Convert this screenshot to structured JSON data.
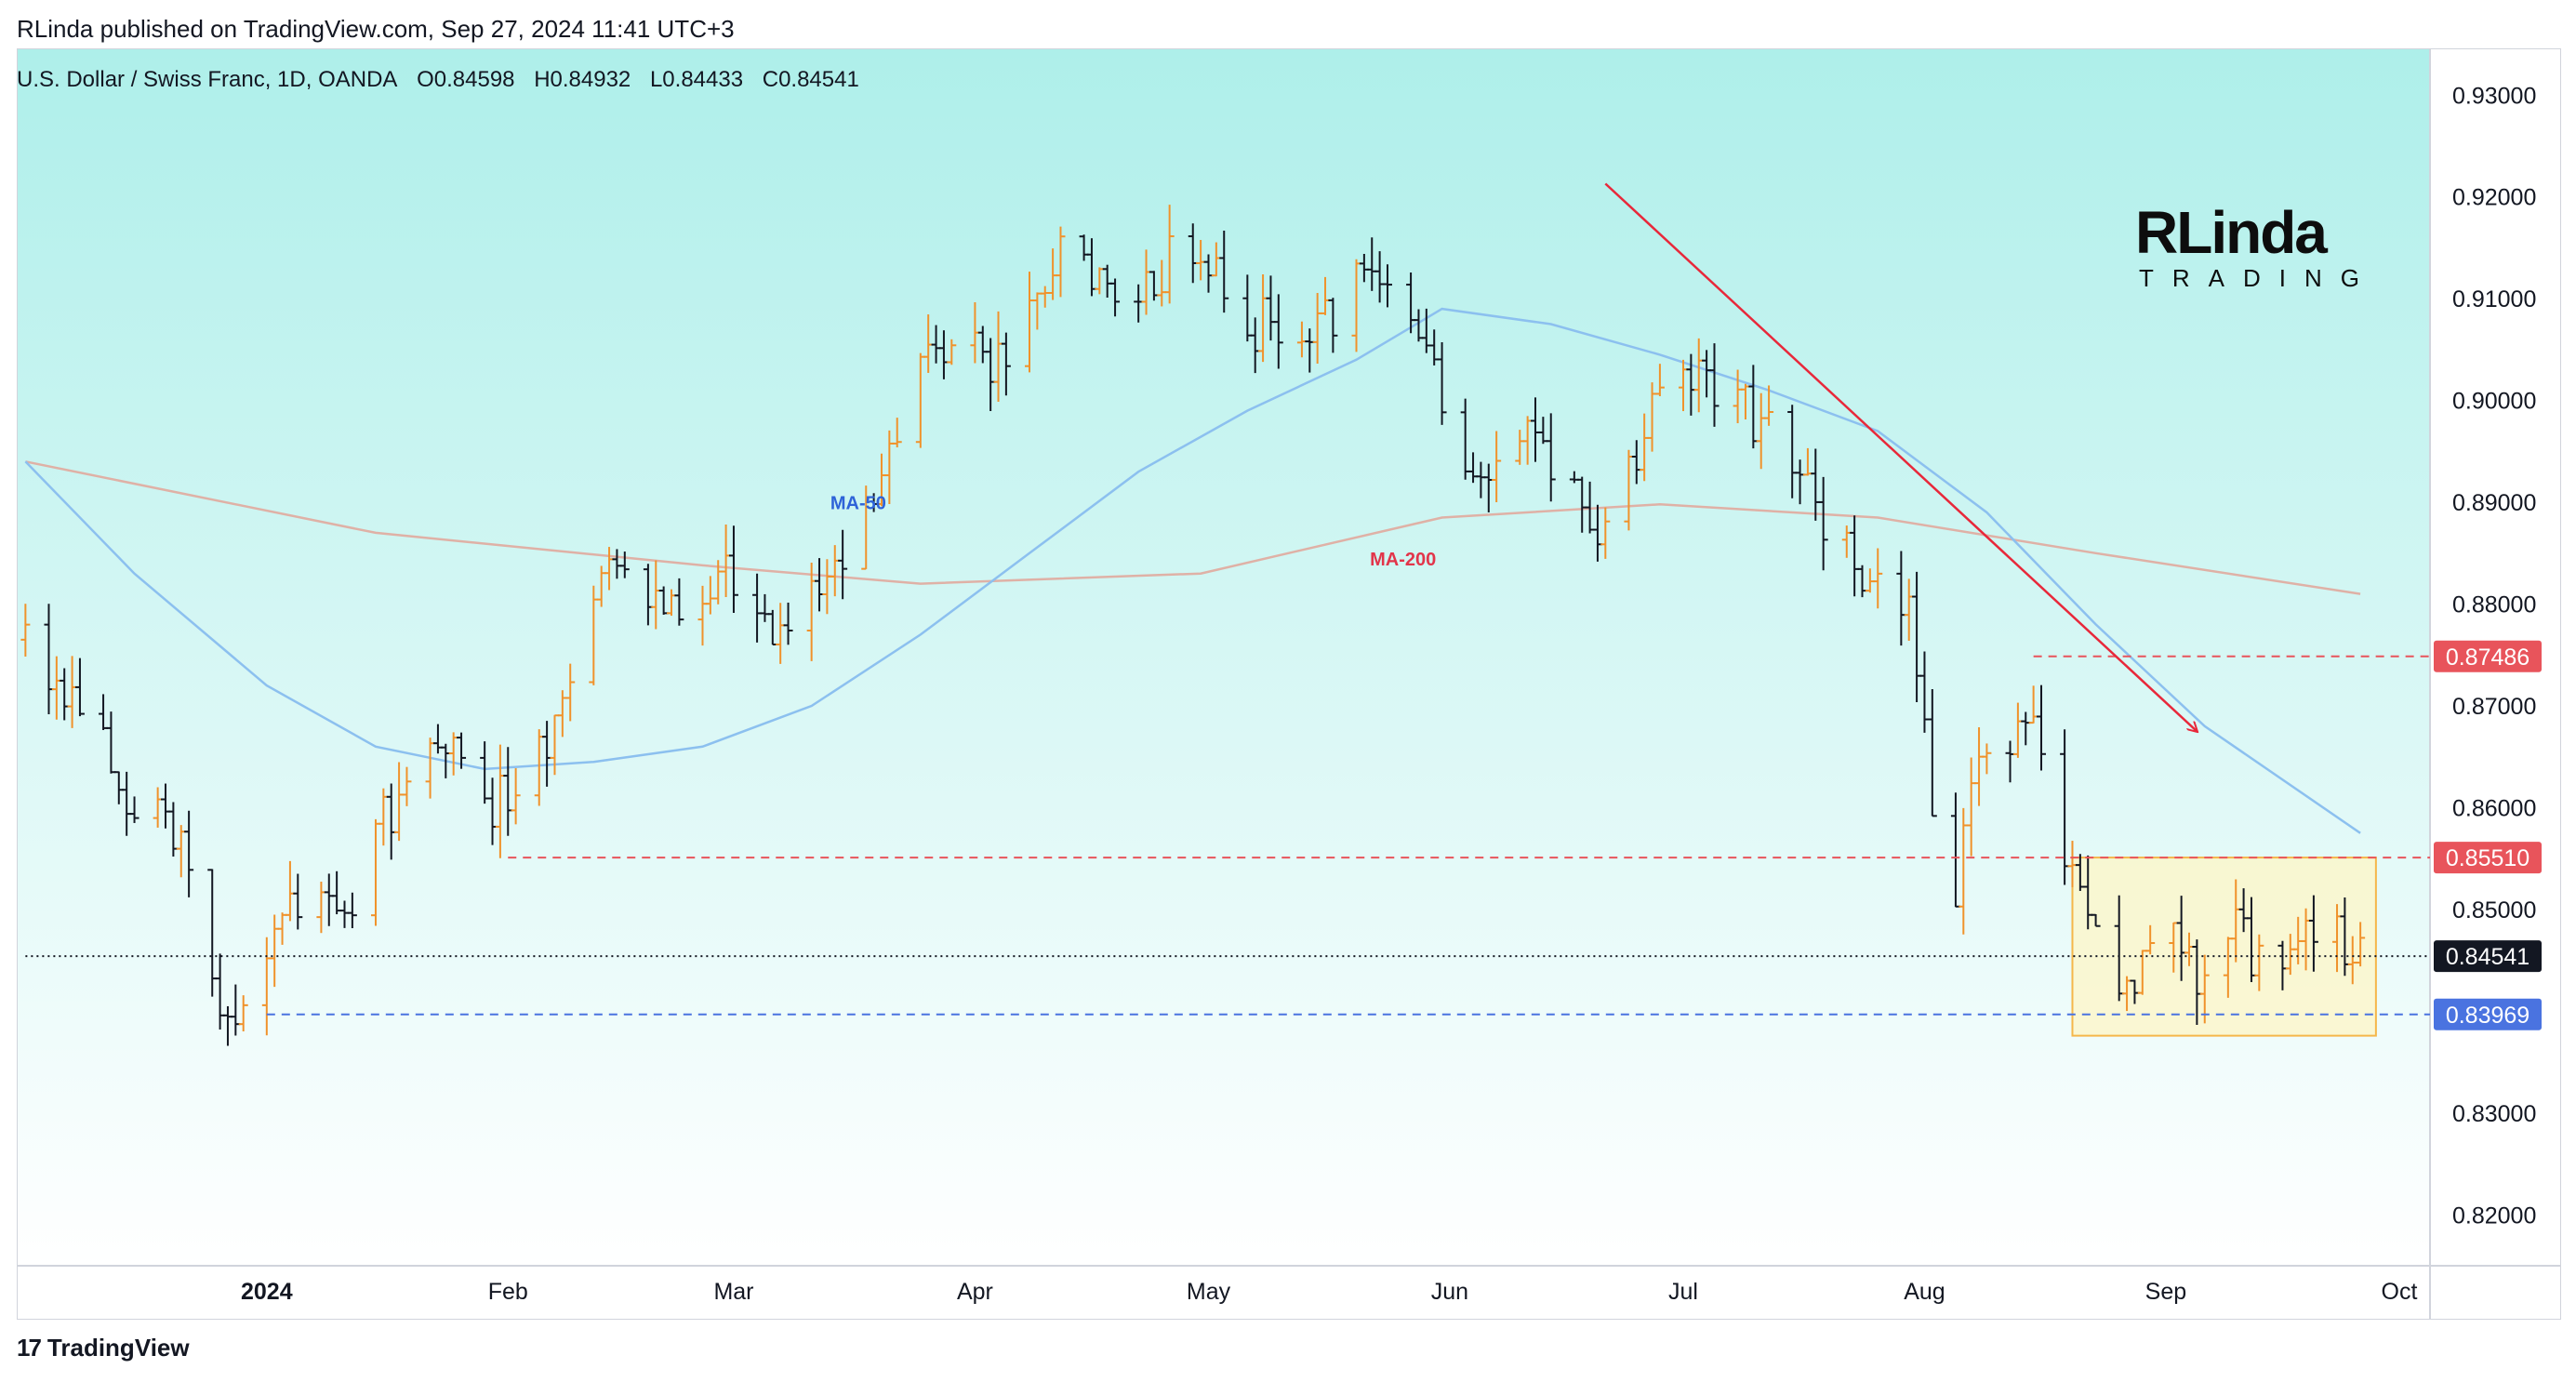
{
  "publisher_line": "RLinda published on TradingView.com, Sep 27, 2024 11:41 UTC+3",
  "symbol": {
    "name": "U.S. Dollar / Swiss Franc, 1D, OANDA",
    "open": "O0.84598",
    "high": "H0.84932",
    "low": "L0.84433",
    "close": "C0.84541"
  },
  "logo": {
    "brand": "RLinda",
    "sub": "TRADING"
  },
  "footer": {
    "brand": "TradingView"
  },
  "colors": {
    "bg_top": "#aeefea",
    "bg_bottom": "#ffffff",
    "candle_up": "#f0922b",
    "candle_down": "#131722",
    "ma50": "#8cc0ef",
    "ma200": "#dfb1a6",
    "resistance": "#e8545b",
    "support": "#4a73e0",
    "trendline": "#e8283a",
    "range_box_fill": "#fdf6c6",
    "range_box_stroke": "#f5b74a"
  },
  "chart_data": {
    "type": "candlestick",
    "title": "U.S. Dollar / Swiss Franc, 1D, OANDA",
    "y_range": [
      0.815,
      0.9345
    ],
    "y_ticks": [
      "0.93000",
      "0.92000",
      "0.91000",
      "0.90000",
      "0.89000",
      "0.88000",
      "0.87000",
      "0.86000",
      "0.85000",
      "0.84000",
      "0.83000",
      "0.82000"
    ],
    "x_labels": [
      {
        "label": "2024",
        "date": "2024-01-01",
        "bold": true
      },
      {
        "label": "Feb",
        "date": "2024-02-01"
      },
      {
        "label": "Mar",
        "date": "2024-03-01"
      },
      {
        "label": "Apr",
        "date": "2024-04-01"
      },
      {
        "label": "May",
        "date": "2024-05-01"
      },
      {
        "label": "Jun",
        "date": "2024-06-01"
      },
      {
        "label": "Jul",
        "date": "2024-07-01"
      },
      {
        "label": "Aug",
        "date": "2024-08-01"
      },
      {
        "label": "Sep",
        "date": "2024-09-01"
      },
      {
        "label": "Oct",
        "date": "2024-10-01"
      }
    ],
    "price_anchors": [
      [
        "2023-12-01",
        0.8765
      ],
      [
        "2023-12-08",
        0.87
      ],
      [
        "2023-12-15",
        0.862
      ],
      [
        "2023-12-22",
        0.856
      ],
      [
        "2023-12-28",
        0.8385
      ],
      [
        "2024-01-05",
        0.852
      ],
      [
        "2024-01-12",
        0.85
      ],
      [
        "2024-01-19",
        0.862
      ],
      [
        "2024-01-26",
        0.868
      ],
      [
        "2024-01-31",
        0.86
      ],
      [
        "2024-02-05",
        0.862
      ],
      [
        "2024-02-14",
        0.882
      ],
      [
        "2024-02-23",
        0.88
      ],
      [
        "2024-03-01",
        0.883
      ],
      [
        "2024-03-08",
        0.878
      ],
      [
        "2024-03-15",
        0.883
      ],
      [
        "2024-03-22",
        0.895
      ],
      [
        "2024-03-28",
        0.905
      ],
      [
        "2024-04-05",
        0.904
      ],
      [
        "2024-04-12",
        0.914
      ],
      [
        "2024-04-19",
        0.911
      ],
      [
        "2024-04-26",
        0.913
      ],
      [
        "2024-05-01",
        0.916
      ],
      [
        "2024-05-06",
        0.908
      ],
      [
        "2024-05-15",
        0.906
      ],
      [
        "2024-05-22",
        0.913
      ],
      [
        "2024-05-29",
        0.908
      ],
      [
        "2024-06-05",
        0.892
      ],
      [
        "2024-06-12",
        0.896
      ],
      [
        "2024-06-19",
        0.892
      ],
      [
        "2024-06-21",
        0.884
      ],
      [
        "2024-06-28",
        0.899
      ],
      [
        "2024-07-05",
        0.902
      ],
      [
        "2024-07-12",
        0.898
      ],
      [
        "2024-07-19",
        0.89
      ],
      [
        "2024-07-24",
        0.883
      ],
      [
        "2024-07-31",
        0.878
      ],
      [
        "2024-08-05",
        0.848
      ],
      [
        "2024-08-09",
        0.864
      ],
      [
        "2024-08-15",
        0.87
      ],
      [
        "2024-08-21",
        0.854
      ],
      [
        "2024-08-27",
        0.842
      ],
      [
        "2024-09-03",
        0.85
      ],
      [
        "2024-09-06",
        0.842
      ],
      [
        "2024-09-11",
        0.848
      ],
      [
        "2024-09-16",
        0.843
      ],
      [
        "2024-09-20",
        0.849
      ],
      [
        "2024-09-26",
        0.8454
      ]
    ],
    "ma50": [
      [
        "2023-12-01",
        0.894
      ],
      [
        "2023-12-15",
        0.883
      ],
      [
        "2024-01-01",
        0.872
      ],
      [
        "2024-01-15",
        0.866
      ],
      [
        "2024-01-29",
        0.8638
      ],
      [
        "2024-02-12",
        0.8645
      ],
      [
        "2024-02-26",
        0.866
      ],
      [
        "2024-03-11",
        0.87
      ],
      [
        "2024-03-25",
        0.877
      ],
      [
        "2024-04-08",
        0.885
      ],
      [
        "2024-04-22",
        0.893
      ],
      [
        "2024-05-06",
        0.899
      ],
      [
        "2024-05-20",
        0.904
      ],
      [
        "2024-05-31",
        0.909
      ],
      [
        "2024-06-14",
        0.9075
      ],
      [
        "2024-06-28",
        0.9045
      ],
      [
        "2024-07-12",
        0.901
      ],
      [
        "2024-07-26",
        0.897
      ],
      [
        "2024-08-09",
        0.889
      ],
      [
        "2024-08-23",
        0.878
      ],
      [
        "2024-09-06",
        0.868
      ],
      [
        "2024-09-26",
        0.8575
      ]
    ],
    "ma200": [
      [
        "2023-12-01",
        0.894
      ],
      [
        "2024-01-15",
        0.887
      ],
      [
        "2024-02-26",
        0.8838
      ],
      [
        "2024-03-25",
        0.882
      ],
      [
        "2024-04-30",
        0.883
      ],
      [
        "2024-05-31",
        0.8885
      ],
      [
        "2024-06-28",
        0.8898
      ],
      [
        "2024-07-26",
        0.8885
      ],
      [
        "2024-08-23",
        0.885
      ],
      [
        "2024-09-26",
        0.881
      ]
    ],
    "series_labels": [
      {
        "name": "MA-50",
        "date": "2024-03-17",
        "price": 0.8893,
        "color": "#2e63d8"
      },
      {
        "name": "MA-200",
        "date": "2024-05-26",
        "price": 0.8838,
        "color": "#e2354a"
      }
    ],
    "levels": [
      {
        "price": 0.87486,
        "label": "0.87486",
        "color": "#e8545b",
        "start": "2024-08-15"
      },
      {
        "price": 0.8551,
        "label": "0.85510",
        "color": "#e8545b",
        "start": "2024-02-01"
      },
      {
        "price": 0.84541,
        "label": "0.84541",
        "color": "#131722",
        "start": "2023-12-01"
      },
      {
        "price": 0.83969,
        "label": "0.83969",
        "color": "#4a73e0",
        "start": "2024-01-01"
      }
    ],
    "range_box": {
      "start": "2024-08-20",
      "end": "2024-09-28",
      "top": 0.8551,
      "bottom": 0.8376
    },
    "trendline": {
      "start_date": "2024-06-21",
      "start_price": 0.9213,
      "end_date": "2024-09-05",
      "end_price": 0.8675
    },
    "last_date": "2024-09-26"
  }
}
